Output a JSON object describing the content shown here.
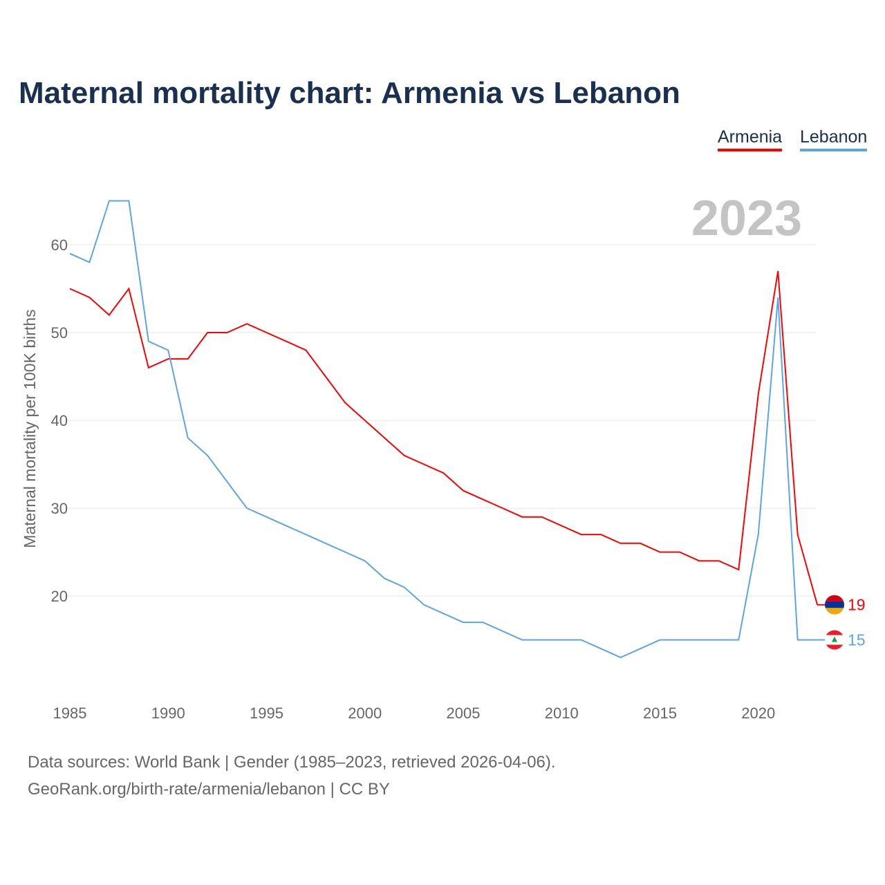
{
  "title": "Maternal mortality chart: Armenia vs Lebanon",
  "legend": [
    {
      "name": "Armenia",
      "color": "#ff0000"
    },
    {
      "name": "Lebanon",
      "color": "#5aa5e8"
    }
  ],
  "year_label": "2023",
  "footer": {
    "line1": "Data sources: World Bank | Gender (1985–2023, retrieved 2026-04-06).",
    "line2": "GeoRank.org/birth-rate/armenia/lebanon | CC BY"
  },
  "chart_data": {
    "type": "line",
    "title": "Maternal mortality chart: Armenia vs Lebanon",
    "xlabel": "",
    "ylabel": "Maternal mortality per 100K births",
    "x": [
      1985,
      1986,
      1987,
      1988,
      1989,
      1990,
      1991,
      1992,
      1993,
      1994,
      1995,
      1996,
      1997,
      1998,
      1999,
      2000,
      2001,
      2002,
      2003,
      2004,
      2005,
      2006,
      2007,
      2008,
      2009,
      2010,
      2011,
      2012,
      2013,
      2014,
      2015,
      2016,
      2017,
      2018,
      2019,
      2020,
      2021,
      2022,
      2023
    ],
    "xticks": [
      1985,
      1990,
      1995,
      2000,
      2005,
      2010,
      2015,
      2020
    ],
    "yticks": [
      20,
      30,
      40,
      50,
      60
    ],
    "ylim": [
      10,
      67
    ],
    "xlim": [
      1985,
      2023
    ],
    "grid": true,
    "legend_placement": "top-right",
    "series": [
      {
        "name": "Armenia",
        "color": "#ff0000",
        "end_label": "19",
        "values": [
          55,
          54,
          52,
          55,
          46,
          47,
          47,
          50,
          50,
          51,
          50,
          49,
          48,
          45,
          42,
          40,
          38,
          36,
          35,
          34,
          32,
          31,
          30,
          29,
          29,
          28,
          27,
          27,
          26,
          26,
          25,
          25,
          24,
          24,
          23,
          43,
          57,
          27,
          19
        ]
      },
      {
        "name": "Lebanon",
        "color": "#5aa5e8",
        "end_label": "15",
        "values": [
          59,
          58,
          65,
          65,
          49,
          48,
          38,
          36,
          33,
          30,
          29,
          28,
          27,
          26,
          25,
          24,
          22,
          21,
          19,
          18,
          17,
          17,
          16,
          15,
          15,
          15,
          15,
          14,
          13,
          14,
          15,
          15,
          15,
          15,
          15,
          27,
          54,
          15,
          15
        ]
      }
    ]
  }
}
